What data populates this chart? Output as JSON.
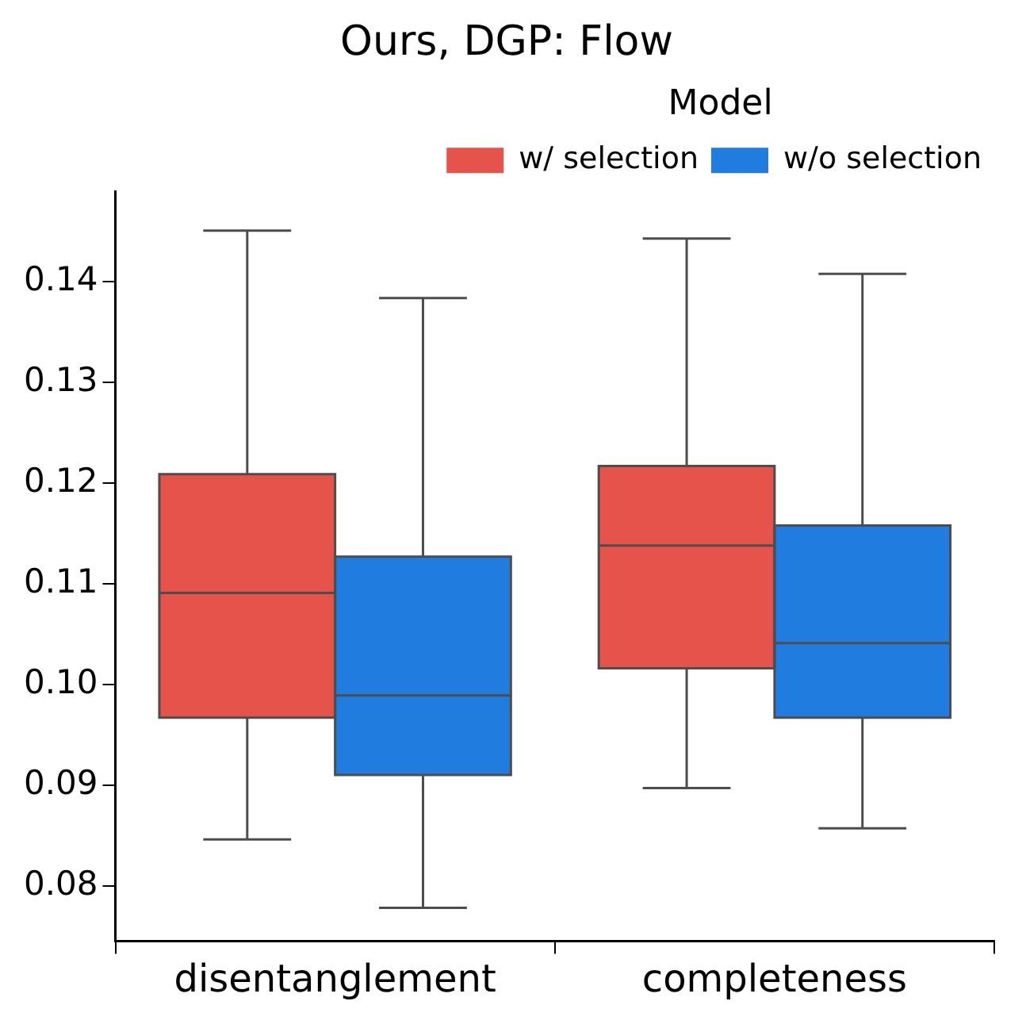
{
  "chart_data": {
    "type": "box",
    "title": "Ours, DGP: Flow",
    "legend_title": "Model",
    "legend": "top right",
    "grid": false,
    "categories": [
      "disentanglement",
      "completeness"
    ],
    "ylim": [
      0.0745,
      0.149
    ],
    "yticks": [
      0.08,
      0.09,
      {
        "value": 0.1,
        "label": "0.10"
      },
      0.11,
      0.12,
      0.13,
      0.14
    ],
    "series": [
      {
        "name": "w/ selection",
        "color": "#e5534b",
        "boxes": [
          {
            "low": 0.0846,
            "q1": 0.0967,
            "median": 0.1091,
            "q3": 0.1209,
            "high": 0.1451
          },
          {
            "low": 0.0897,
            "q1": 0.1016,
            "median": 0.1138,
            "q3": 0.1217,
            "high": 0.1443
          }
        ]
      },
      {
        "name": "w/o selection",
        "color": "#207ddf",
        "boxes": [
          {
            "low": 0.0778,
            "q1": 0.091,
            "median": 0.0989,
            "q3": 0.1127,
            "high": 0.1384
          },
          {
            "low": 0.0857,
            "q1": 0.0967,
            "median": 0.1041,
            "q3": 0.1158,
            "high": 0.1408
          }
        ]
      }
    ]
  }
}
